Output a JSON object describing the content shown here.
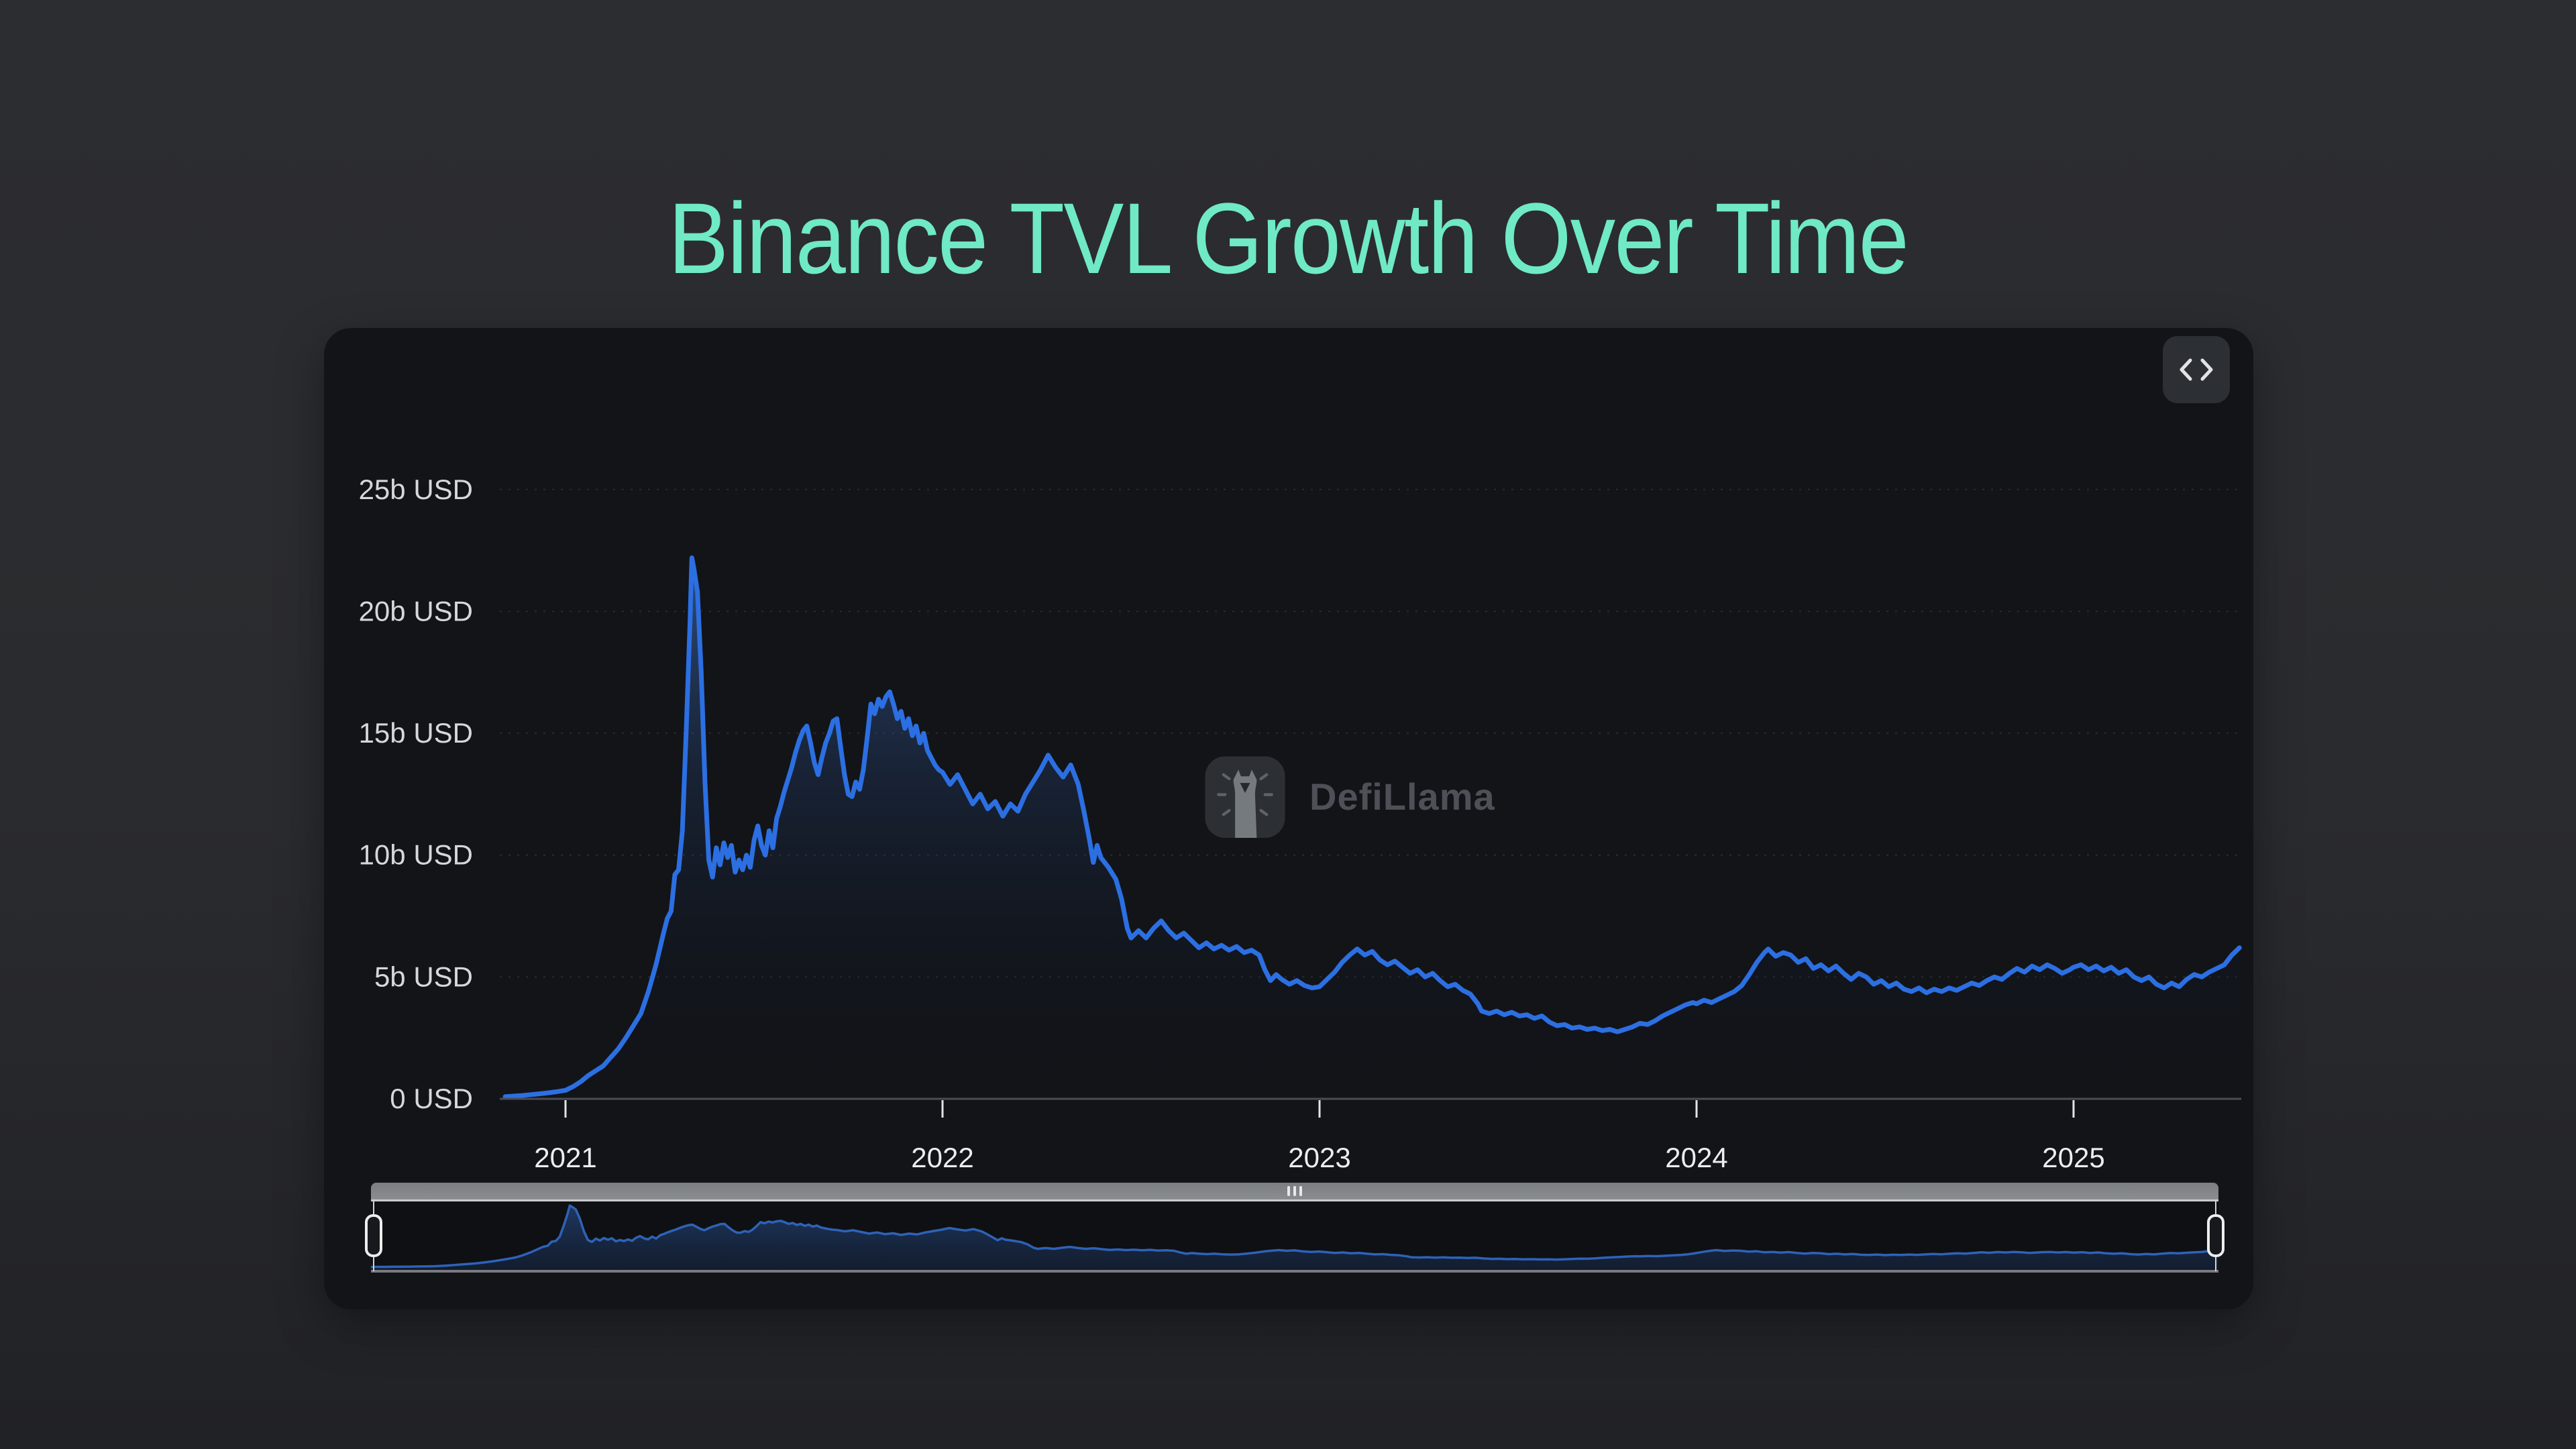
{
  "page": {
    "title": "Binance TVL Growth Over Time",
    "title_color": "#6fe9c6",
    "background_color": "#2a2b2e",
    "card_background": "#121418"
  },
  "toolbar": {
    "embed_button_icon": "code-chevrons"
  },
  "watermark": {
    "text": "DefiLlama"
  },
  "slider": {
    "range_start_pct": 0,
    "range_end_pct": 100
  },
  "chart_data": {
    "type": "area",
    "title": "Binance TVL Growth Over Time",
    "series_name": "Binance TVL",
    "unit": "b USD",
    "xlabel": "",
    "ylabel": "",
    "x_ticks": [
      2021,
      2022,
      2023,
      2024,
      2025
    ],
    "x_tick_labels": [
      "2021",
      "2022",
      "2023",
      "2024",
      "2025"
    ],
    "y_ticks": [
      0,
      5,
      10,
      15,
      20,
      25
    ],
    "y_tick_labels": [
      "0 USD",
      "5b USD",
      "10b USD",
      "15b USD",
      "20b USD",
      "25b USD"
    ],
    "xlim": [
      2020.84,
      2025.46
    ],
    "ylim": [
      0,
      25
    ],
    "grid": "dotted-horizontal",
    "legend": "none",
    "line_color": "#2c6fe2",
    "mini_line_color": "#2e62b8",
    "peak_value": 22.2,
    "peak_time": 2021.335,
    "points": [
      [
        2020.84,
        0.09
      ],
      [
        2020.86,
        0.11
      ],
      [
        2020.88,
        0.13
      ],
      [
        2020.9,
        0.16
      ],
      [
        2020.92,
        0.19
      ],
      [
        2020.94,
        0.22
      ],
      [
        2020.96,
        0.26
      ],
      [
        2020.98,
        0.3
      ],
      [
        2021.0,
        0.35
      ],
      [
        2021.02,
        0.5
      ],
      [
        2021.04,
        0.7
      ],
      [
        2021.06,
        0.95
      ],
      [
        2021.08,
        1.15
      ],
      [
        2021.1,
        1.35
      ],
      [
        2021.12,
        1.7
      ],
      [
        2021.14,
        2.05
      ],
      [
        2021.16,
        2.5
      ],
      [
        2021.18,
        3.0
      ],
      [
        2021.2,
        3.5
      ],
      [
        2021.22,
        4.4
      ],
      [
        2021.24,
        5.5
      ],
      [
        2021.26,
        6.8
      ],
      [
        2021.27,
        7.4
      ],
      [
        2021.28,
        7.7
      ],
      [
        2021.29,
        9.2
      ],
      [
        2021.3,
        9.4
      ],
      [
        2021.31,
        11.0
      ],
      [
        2021.32,
        15.0
      ],
      [
        2021.33,
        19.5
      ],
      [
        2021.335,
        22.2
      ],
      [
        2021.34,
        21.8
      ],
      [
        2021.35,
        20.8
      ],
      [
        2021.36,
        17.5
      ],
      [
        2021.37,
        13.0
      ],
      [
        2021.38,
        9.8
      ],
      [
        2021.39,
        9.1
      ],
      [
        2021.4,
        10.3
      ],
      [
        2021.41,
        9.6
      ],
      [
        2021.42,
        10.5
      ],
      [
        2021.43,
        9.9
      ],
      [
        2021.44,
        10.4
      ],
      [
        2021.45,
        9.3
      ],
      [
        2021.46,
        9.8
      ],
      [
        2021.47,
        9.4
      ],
      [
        2021.48,
        10.0
      ],
      [
        2021.49,
        9.5
      ],
      [
        2021.5,
        10.6
      ],
      [
        2021.51,
        11.2
      ],
      [
        2021.52,
        10.4
      ],
      [
        2021.53,
        10.0
      ],
      [
        2021.54,
        11.0
      ],
      [
        2021.55,
        10.3
      ],
      [
        2021.56,
        11.5
      ],
      [
        2021.57,
        12.0
      ],
      [
        2021.58,
        12.6
      ],
      [
        2021.59,
        13.1
      ],
      [
        2021.6,
        13.6
      ],
      [
        2021.61,
        14.2
      ],
      [
        2021.62,
        14.7
      ],
      [
        2021.63,
        15.1
      ],
      [
        2021.64,
        15.3
      ],
      [
        2021.65,
        14.6
      ],
      [
        2021.66,
        13.8
      ],
      [
        2021.67,
        13.3
      ],
      [
        2021.68,
        14.0
      ],
      [
        2021.69,
        14.6
      ],
      [
        2021.7,
        15.0
      ],
      [
        2021.71,
        15.5
      ],
      [
        2021.72,
        15.6
      ],
      [
        2021.73,
        14.4
      ],
      [
        2021.74,
        13.3
      ],
      [
        2021.75,
        12.5
      ],
      [
        2021.76,
        12.4
      ],
      [
        2021.77,
        13.0
      ],
      [
        2021.78,
        12.7
      ],
      [
        2021.79,
        13.5
      ],
      [
        2021.8,
        14.8
      ],
      [
        2021.81,
        16.2
      ],
      [
        2021.82,
        15.8
      ],
      [
        2021.83,
        16.4
      ],
      [
        2021.84,
        16.1
      ],
      [
        2021.85,
        16.5
      ],
      [
        2021.86,
        16.7
      ],
      [
        2021.87,
        16.2
      ],
      [
        2021.88,
        15.6
      ],
      [
        2021.89,
        15.9
      ],
      [
        2021.9,
        15.2
      ],
      [
        2021.91,
        15.6
      ],
      [
        2021.92,
        14.9
      ],
      [
        2021.93,
        15.3
      ],
      [
        2021.94,
        14.6
      ],
      [
        2021.95,
        15.0
      ],
      [
        2021.96,
        14.3
      ],
      [
        2021.97,
        14.0
      ],
      [
        2021.98,
        13.7
      ],
      [
        2021.99,
        13.5
      ],
      [
        2022.0,
        13.4
      ],
      [
        2022.02,
        12.9
      ],
      [
        2022.04,
        13.3
      ],
      [
        2022.06,
        12.7
      ],
      [
        2022.08,
        12.1
      ],
      [
        2022.1,
        12.5
      ],
      [
        2022.12,
        11.9
      ],
      [
        2022.14,
        12.2
      ],
      [
        2022.16,
        11.6
      ],
      [
        2022.18,
        12.1
      ],
      [
        2022.2,
        11.8
      ],
      [
        2022.22,
        12.5
      ],
      [
        2022.24,
        13.0
      ],
      [
        2022.26,
        13.5
      ],
      [
        2022.28,
        14.1
      ],
      [
        2022.3,
        13.6
      ],
      [
        2022.32,
        13.2
      ],
      [
        2022.34,
        13.7
      ],
      [
        2022.36,
        12.9
      ],
      [
        2022.375,
        11.8
      ],
      [
        2022.39,
        10.6
      ],
      [
        2022.4,
        9.7
      ],
      [
        2022.41,
        10.4
      ],
      [
        2022.42,
        9.9
      ],
      [
        2022.44,
        9.5
      ],
      [
        2022.46,
        9.0
      ],
      [
        2022.475,
        8.2
      ],
      [
        2022.49,
        7.0
      ],
      [
        2022.5,
        6.6
      ],
      [
        2022.52,
        6.9
      ],
      [
        2022.54,
        6.6
      ],
      [
        2022.56,
        7.0
      ],
      [
        2022.58,
        7.3
      ],
      [
        2022.6,
        6.9
      ],
      [
        2022.62,
        6.6
      ],
      [
        2022.64,
        6.8
      ],
      [
        2022.66,
        6.5
      ],
      [
        2022.68,
        6.2
      ],
      [
        2022.7,
        6.4
      ],
      [
        2022.72,
        6.15
      ],
      [
        2022.74,
        6.3
      ],
      [
        2022.76,
        6.1
      ],
      [
        2022.78,
        6.25
      ],
      [
        2022.8,
        6.0
      ],
      [
        2022.82,
        6.1
      ],
      [
        2022.84,
        5.9
      ],
      [
        2022.855,
        5.3
      ],
      [
        2022.87,
        4.85
      ],
      [
        2022.885,
        5.1
      ],
      [
        2022.9,
        4.9
      ],
      [
        2022.92,
        4.7
      ],
      [
        2022.94,
        4.85
      ],
      [
        2022.96,
        4.65
      ],
      [
        2022.98,
        4.55
      ],
      [
        2023.0,
        4.6
      ],
      [
        2023.02,
        4.9
      ],
      [
        2023.04,
        5.2
      ],
      [
        2023.06,
        5.6
      ],
      [
        2023.08,
        5.9
      ],
      [
        2023.1,
        6.15
      ],
      [
        2023.12,
        5.9
      ],
      [
        2023.14,
        6.05
      ],
      [
        2023.16,
        5.7
      ],
      [
        2023.18,
        5.5
      ],
      [
        2023.2,
        5.65
      ],
      [
        2023.22,
        5.4
      ],
      [
        2023.24,
        5.15
      ],
      [
        2023.26,
        5.3
      ],
      [
        2023.28,
        5.0
      ],
      [
        2023.3,
        5.15
      ],
      [
        2023.32,
        4.85
      ],
      [
        2023.34,
        4.6
      ],
      [
        2023.36,
        4.7
      ],
      [
        2023.38,
        4.45
      ],
      [
        2023.4,
        4.3
      ],
      [
        2023.42,
        3.9
      ],
      [
        2023.43,
        3.6
      ],
      [
        2023.45,
        3.5
      ],
      [
        2023.47,
        3.6
      ],
      [
        2023.49,
        3.45
      ],
      [
        2023.51,
        3.55
      ],
      [
        2023.53,
        3.4
      ],
      [
        2023.55,
        3.45
      ],
      [
        2023.57,
        3.3
      ],
      [
        2023.59,
        3.4
      ],
      [
        2023.61,
        3.15
      ],
      [
        2023.63,
        3.0
      ],
      [
        2023.65,
        3.05
      ],
      [
        2023.67,
        2.9
      ],
      [
        2023.69,
        2.95
      ],
      [
        2023.71,
        2.85
      ],
      [
        2023.73,
        2.9
      ],
      [
        2023.75,
        2.8
      ],
      [
        2023.77,
        2.85
      ],
      [
        2023.79,
        2.75
      ],
      [
        2023.81,
        2.85
      ],
      [
        2023.83,
        2.95
      ],
      [
        2023.85,
        3.1
      ],
      [
        2023.87,
        3.05
      ],
      [
        2023.89,
        3.2
      ],
      [
        2023.91,
        3.4
      ],
      [
        2023.93,
        3.55
      ],
      [
        2023.95,
        3.7
      ],
      [
        2023.97,
        3.85
      ],
      [
        2023.99,
        3.95
      ],
      [
        2024.0,
        3.9
      ],
      [
        2024.02,
        4.05
      ],
      [
        2024.04,
        3.95
      ],
      [
        2024.06,
        4.1
      ],
      [
        2024.08,
        4.25
      ],
      [
        2024.1,
        4.4
      ],
      [
        2024.12,
        4.65
      ],
      [
        2024.14,
        5.1
      ],
      [
        2024.16,
        5.6
      ],
      [
        2024.18,
        6.0
      ],
      [
        2024.19,
        6.15
      ],
      [
        2024.21,
        5.85
      ],
      [
        2024.23,
        6.0
      ],
      [
        2024.25,
        5.9
      ],
      [
        2024.27,
        5.6
      ],
      [
        2024.29,
        5.75
      ],
      [
        2024.31,
        5.35
      ],
      [
        2024.33,
        5.5
      ],
      [
        2024.35,
        5.25
      ],
      [
        2024.37,
        5.45
      ],
      [
        2024.39,
        5.15
      ],
      [
        2024.41,
        4.9
      ],
      [
        2024.43,
        5.15
      ],
      [
        2024.45,
        5.0
      ],
      [
        2024.47,
        4.7
      ],
      [
        2024.49,
        4.85
      ],
      [
        2024.51,
        4.6
      ],
      [
        2024.53,
        4.75
      ],
      [
        2024.55,
        4.5
      ],
      [
        2024.57,
        4.4
      ],
      [
        2024.59,
        4.55
      ],
      [
        2024.61,
        4.35
      ],
      [
        2024.63,
        4.5
      ],
      [
        2024.65,
        4.4
      ],
      [
        2024.67,
        4.55
      ],
      [
        2024.69,
        4.45
      ],
      [
        2024.71,
        4.6
      ],
      [
        2024.73,
        4.75
      ],
      [
        2024.75,
        4.65
      ],
      [
        2024.77,
        4.85
      ],
      [
        2024.79,
        5.0
      ],
      [
        2024.81,
        4.9
      ],
      [
        2024.83,
        5.15
      ],
      [
        2024.85,
        5.35
      ],
      [
        2024.87,
        5.2
      ],
      [
        2024.89,
        5.45
      ],
      [
        2024.91,
        5.3
      ],
      [
        2024.93,
        5.5
      ],
      [
        2024.95,
        5.35
      ],
      [
        2024.97,
        5.15
      ],
      [
        2024.99,
        5.3
      ],
      [
        2025.0,
        5.4
      ],
      [
        2025.02,
        5.5
      ],
      [
        2025.04,
        5.3
      ],
      [
        2025.06,
        5.45
      ],
      [
        2025.08,
        5.25
      ],
      [
        2025.1,
        5.4
      ],
      [
        2025.12,
        5.15
      ],
      [
        2025.14,
        5.3
      ],
      [
        2025.16,
        5.0
      ],
      [
        2025.18,
        4.85
      ],
      [
        2025.2,
        5.0
      ],
      [
        2025.22,
        4.7
      ],
      [
        2025.24,
        4.55
      ],
      [
        2025.26,
        4.75
      ],
      [
        2025.28,
        4.6
      ],
      [
        2025.3,
        4.9
      ],
      [
        2025.32,
        5.1
      ],
      [
        2025.34,
        5.0
      ],
      [
        2025.36,
        5.2
      ],
      [
        2025.38,
        5.35
      ],
      [
        2025.4,
        5.5
      ],
      [
        2025.42,
        5.9
      ],
      [
        2025.44,
        6.2
      ]
    ]
  }
}
